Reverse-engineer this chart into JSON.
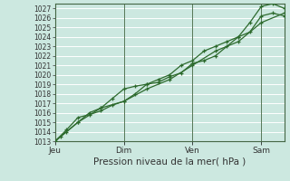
{
  "bg_color": "#cce8e0",
  "grid_color": "#ffffff",
  "line_color": "#2d6a2d",
  "title": "Pression niveau de la mer( hPa )",
  "ylim_min": 1013,
  "ylim_max": 1027.5,
  "yticks": [
    1013,
    1014,
    1015,
    1016,
    1017,
    1018,
    1019,
    1020,
    1021,
    1022,
    1023,
    1024,
    1025,
    1026,
    1027
  ],
  "xtick_labels": [
    "Jeu",
    "Dim",
    "Ven",
    "Sam"
  ],
  "xtick_positions": [
    0,
    36,
    72,
    108
  ],
  "xlim_max": 120,
  "series1_x": [
    0,
    3,
    6,
    12,
    18,
    24,
    30,
    36,
    42,
    48,
    54,
    60,
    66,
    72,
    78,
    84,
    90,
    96,
    102,
    108,
    114,
    120
  ],
  "series1_y": [
    1013.0,
    1013.5,
    1014.0,
    1015.0,
    1016.0,
    1016.5,
    1017.5,
    1018.5,
    1018.8,
    1019.0,
    1019.5,
    1020.0,
    1021.0,
    1021.5,
    1022.5,
    1023.0,
    1023.5,
    1024.0,
    1025.5,
    1027.2,
    1027.5,
    1027.0
  ],
  "series2_x": [
    0,
    6,
    12,
    18,
    24,
    30,
    36,
    42,
    48,
    54,
    60,
    66,
    72,
    78,
    84,
    90,
    96,
    102,
    108,
    114,
    120
  ],
  "series2_y": [
    1013.0,
    1014.2,
    1015.5,
    1015.8,
    1016.2,
    1016.8,
    1017.2,
    1018.0,
    1019.0,
    1019.2,
    1019.8,
    1020.2,
    1021.2,
    1021.5,
    1022.0,
    1023.0,
    1024.0,
    1024.5,
    1026.2,
    1026.5,
    1026.2
  ],
  "series3_x": [
    0,
    12,
    24,
    36,
    48,
    60,
    72,
    84,
    96,
    108,
    120
  ],
  "series3_y": [
    1013.0,
    1015.0,
    1016.5,
    1017.2,
    1018.5,
    1019.5,
    1021.0,
    1022.5,
    1023.5,
    1025.5,
    1026.5
  ],
  "vline_color": "#557755",
  "spine_color": "#446644",
  "tick_color": "#333333",
  "tick_fontsize": 5.5,
  "xlabel_fontsize": 7.5,
  "xtick_fontsize": 6.5
}
